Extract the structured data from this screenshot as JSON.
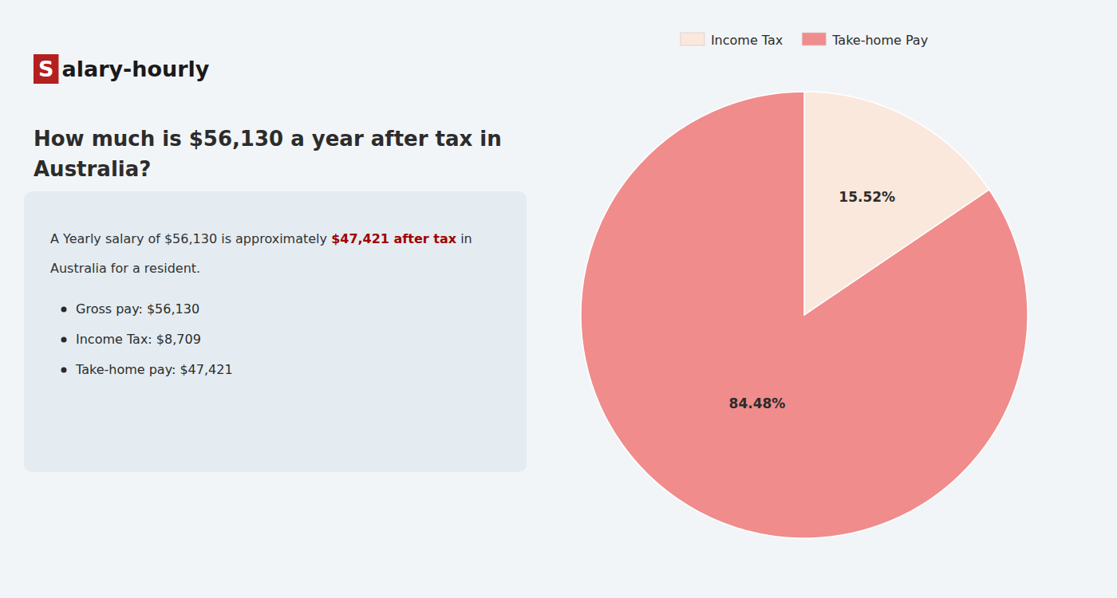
{
  "chart_data": {
    "type": "pie",
    "title": "How much is $56,130 a year after tax in\nAustralia?",
    "annotations": [
      "S",
      "alary-hourly",
      "A Yearly salary of $56,130 is approximately ",
      "$47,421 after tax",
      " in",
      "Australia for a resident.",
      "Gross pay: $56,130",
      "Income Tax: $8,709",
      "Take-home pay: $47,421"
    ],
    "categories": [
      "Income Tax",
      "Take-home Pay"
    ],
    "values": [
      15.52,
      84.48
    ],
    "value_labels": [
      "15.52%",
      "84.48%"
    ],
    "colors": [
      "#fbe8dc",
      "#f08c8c"
    ],
    "data_labels": true,
    "legend": "top"
  }
}
